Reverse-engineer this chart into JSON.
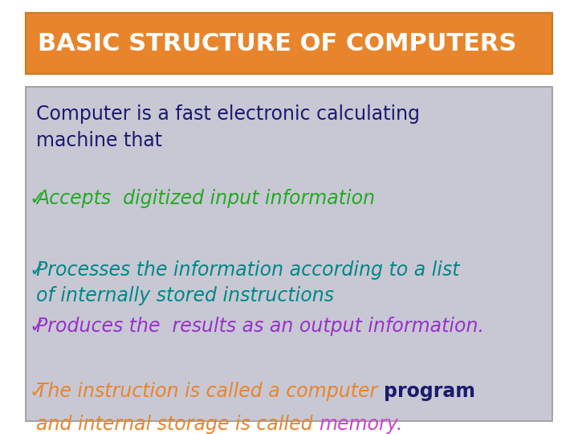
{
  "background_color": "#ffffff",
  "title": "BASIC STRUCTURE OF COMPUTERS",
  "title_bg": "#E8852C",
  "title_color": "#FFFFFF",
  "title_fontsize": 22,
  "body_bg": "#c8c8d4",
  "body_border": "#999999",
  "outer_bg": "#ffffff",
  "intro_text": "Computer is a fast electronic calculating\nmachine that",
  "intro_color": "#1a1a6e",
  "intro_fontsize": 17,
  "bullet_char": "✓",
  "bullet_fontsize": 17,
  "bullets": [
    {
      "text": "Accepts  digitized input information",
      "color": "#22aa22"
    },
    {
      "text": "Processes the information according to a list\nof internally stored instructions",
      "color": "#008888"
    },
    {
      "text": "Produces the  results as an output information.",
      "color": "#9932CC"
    }
  ],
  "last_bullet_line1_text1": "The instruction is called a computer ",
  "last_bullet_line1_color1": "#E8852C",
  "last_bullet_line1_text2": "program",
  "last_bullet_line1_color2": "#1a1a6e",
  "last_bullet_line1_bold2": true,
  "last_bullet_line2_text1": "and internal storage is called ",
  "last_bullet_line2_color1": "#E8852C",
  "last_bullet_line2_text2": "memory.",
  "last_bullet_line2_color2": "#cc44cc"
}
